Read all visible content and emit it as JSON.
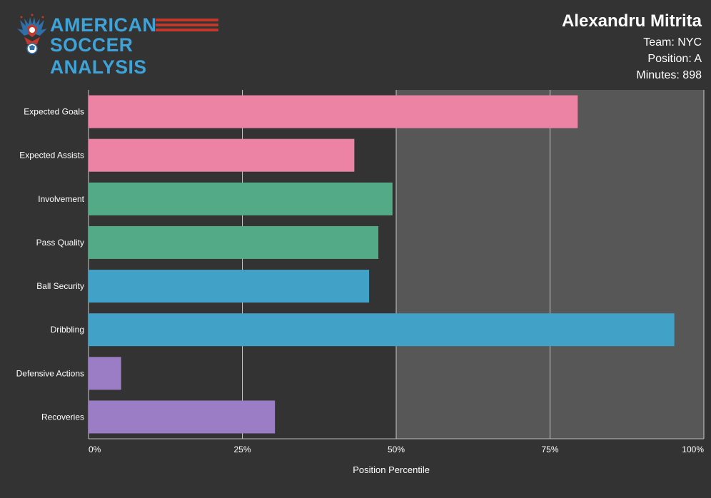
{
  "logo": {
    "line1": "AMERICAN",
    "line2": "SOCCER ANALYSIS"
  },
  "player": {
    "name": "Alexandru Mitrita",
    "team": "Team: NYC",
    "position": "Position: A",
    "minutes": "Minutes: 898"
  },
  "chart_data": {
    "type": "bar",
    "orientation": "horizontal",
    "categories": [
      "Expected Goals",
      "Expected Assists",
      "Involvement",
      "Pass Quality",
      "Ball Security",
      "Dribbling",
      "Defensive Actions",
      "Recoveries"
    ],
    "values": [
      79.5,
      43.2,
      49.4,
      47.1,
      45.6,
      95.2,
      5.3,
      30.3
    ],
    "colors": [
      "#ec83a4",
      "#ec83a4",
      "#52aa86",
      "#52aa86",
      "#41a1c6",
      "#41a1c6",
      "#9b7dc6",
      "#9b7dc6"
    ],
    "xlabel": "Position Percentile",
    "xlim": [
      0,
      100
    ],
    "xticks": [
      0,
      25,
      50,
      75,
      100
    ],
    "xtick_labels": [
      "0%",
      "25%",
      "50%",
      "75%",
      "100%"
    ],
    "highlight_range": [
      50,
      100
    ],
    "grid": true
  },
  "colors": {
    "background": "#333333",
    "plot_background": "#333333",
    "highlight_band": "#575757",
    "gridline": "#c8c8c8",
    "logo_blue": "#3ea3d9",
    "logo_red": "#c0392b"
  }
}
